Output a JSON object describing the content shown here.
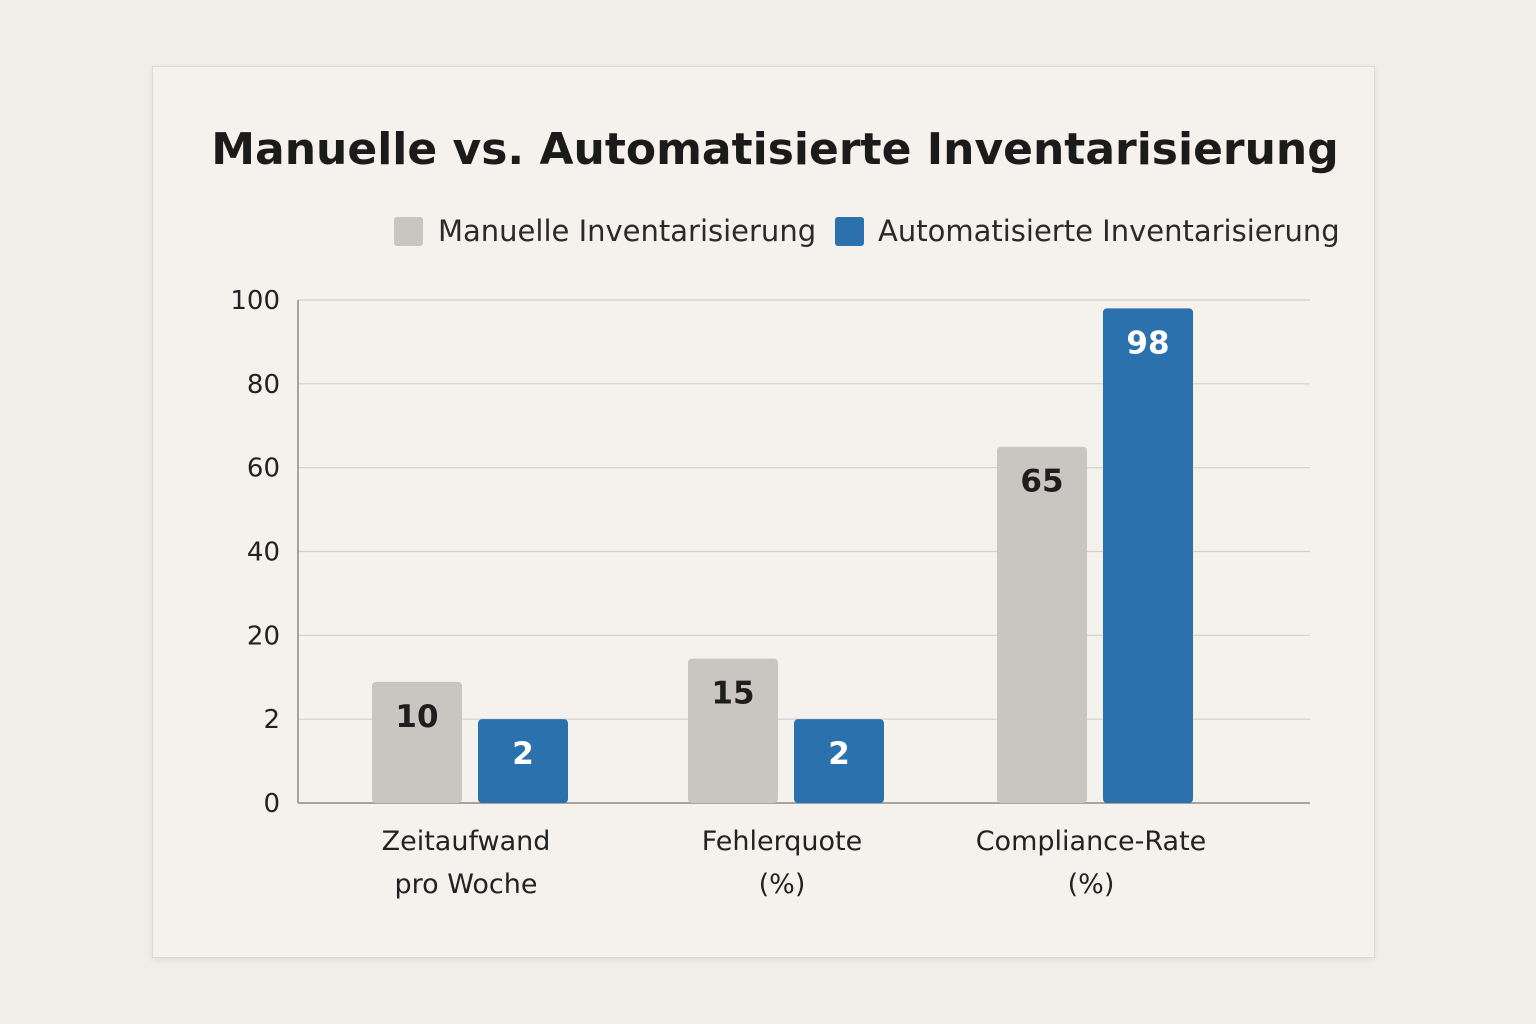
{
  "chart_data": {
    "type": "bar",
    "title": "Manuelle vs. Automatisierte Inventarisierung",
    "xlabel": "",
    "ylabel": "",
    "y_ticks": [
      "0",
      "2",
      "20",
      "40",
      "60",
      "80",
      "100"
    ],
    "categories": [
      [
        "Zeitaufwand",
        "pro Woche"
      ],
      [
        "Fehlerquote",
        "(%)"
      ],
      [
        "Compliance-Rate",
        "(%)"
      ]
    ],
    "series": [
      {
        "name": "Manuelle Inventarisierung",
        "color": "#c9c5c0",
        "label_color": "#1e1e1e",
        "values": [
          10,
          15,
          65
        ]
      },
      {
        "name": "Automatisierte Inventarisierung",
        "color": "#2a71ad",
        "label_color": "#ffffff",
        "values": [
          2,
          2,
          98
        ]
      }
    ],
    "grid": true,
    "legend_position": "top-right"
  }
}
